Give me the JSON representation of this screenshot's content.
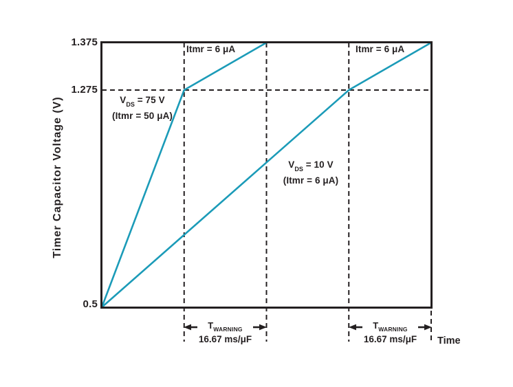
{
  "chart_data": {
    "type": "line",
    "title": "",
    "xlabel": "Time",
    "ylabel": "Timer Capacitor Voltage (V)",
    "yticks": [
      "1.375",
      "1.275",
      "0.5"
    ],
    "y_tick_values": [
      1.375,
      1.275,
      0.5
    ],
    "x_range": [
      0,
      4
    ],
    "x_axis_note": "time axis unlabeled; one dashed division equals TWARNING = 16.67 ms/uF",
    "y_axis_note": "y axis not drawn to scale (0.5 to 1.275 region compressed)",
    "line_color": "#1b9bb8",
    "axis_color": "#231f20",
    "grid": false,
    "legend_position": "none",
    "series": [
      {
        "name": "VDS = 75 V (Itmr = 50 uA), then Itmr = 6 uA after warning threshold",
        "points": [
          [
            0,
            0.5
          ],
          [
            1,
            1.275
          ],
          [
            2,
            1.375
          ]
        ]
      },
      {
        "name": "VDS = 10 V (Itmr = 6 uA), then Itmr = 6 uA after warning threshold",
        "points": [
          [
            0,
            0.5
          ],
          [
            3,
            1.275
          ],
          [
            4,
            1.375
          ]
        ]
      }
    ],
    "threshold": {
      "y": 1.275,
      "style": "dashed"
    },
    "reference_lines": [
      {
        "x": 1,
        "span": "full"
      },
      {
        "x": 2,
        "span": "full"
      },
      {
        "x": 3,
        "span": "full"
      },
      {
        "x": 4,
        "span": "below-axis"
      }
    ],
    "warning_windows": [
      {
        "from": 1,
        "to": 2,
        "label": "16.67 ms/μF"
      },
      {
        "from": 3,
        "to": 4,
        "label": "16.67 ms/μF"
      }
    ]
  },
  "annotations": {
    "itmr_label_1": "Itmr = 6 μA",
    "itmr_label_2": "Itmr = 6 μA",
    "vds75": {
      "v": "V",
      "sub": "DS",
      "rest": " = 75 V",
      "line2": "(Itmr = 50 μA)"
    },
    "vds10": {
      "v": "V",
      "sub": "DS",
      "rest": " = 10 V",
      "line2": "(Itmr = 6 μA)"
    },
    "twarning": {
      "t": "T",
      "sub": "WARNING"
    },
    "warning_value_1": "16.67 ms/μF",
    "warning_value_2": "16.67 ms/μF",
    "time_label": "Time"
  }
}
